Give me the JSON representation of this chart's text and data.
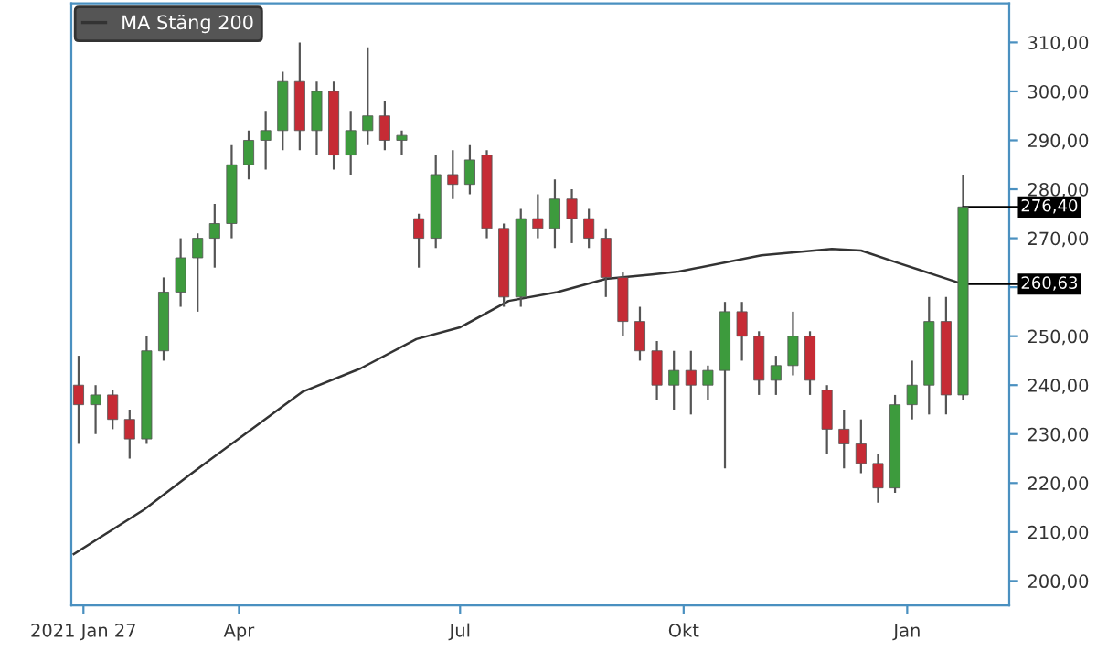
{
  "chart_data": {
    "type": "candlestick",
    "xlim": [
      "2021-01-22",
      "2022-02-12"
    ],
    "xticks": [
      {
        "value": "2021-01-27",
        "label": "2021 Jan 27"
      },
      {
        "value": "2021-04-01",
        "label": "Apr"
      },
      {
        "value": "2021-07-01",
        "label": "Jul"
      },
      {
        "value": "2021-10-01",
        "label": "Okt"
      },
      {
        "value": "2022-01-01",
        "label": "Jan"
      }
    ],
    "ylim": [
      195,
      318
    ],
    "yticks": [
      {
        "value": 200,
        "label": "200,00"
      },
      {
        "value": 210,
        "label": "210,00"
      },
      {
        "value": 220,
        "label": "220,00"
      },
      {
        "value": 230,
        "label": "230,00"
      },
      {
        "value": 240,
        "label": "240,00"
      },
      {
        "value": 250,
        "label": "250,00"
      },
      {
        "value": 260,
        "label": null
      },
      {
        "value": 270,
        "label": "270,00"
      },
      {
        "value": 280,
        "label": "280,00"
      },
      {
        "value": 290,
        "label": "290,00"
      },
      {
        "value": 300,
        "label": "300,00"
      },
      {
        "value": 310,
        "label": "310,00"
      }
    ],
    "grid": false,
    "legend": "top left",
    "series": [
      {
        "type": "candlestick",
        "colors": [
          "#c62b35",
          "#3d9b3d",
          "#c62b35",
          "#c62b35",
          "#3d9b3d",
          "#3d9b3d",
          "#3d9b3d",
          "#3d9b3d",
          "#3d9b3d",
          "#3d9b3d",
          "#3d9b3d",
          "#3d9b3d",
          "#3d9b3d",
          "#c62b35",
          "#3d9b3d",
          "#c62b35",
          "#3d9b3d",
          "#3d9b3d",
          "#c62b35",
          "#3d9b3d",
          "#c62b35",
          "#3d9b3d",
          "#c62b35",
          "#3d9b3d",
          "#c62b35",
          "#c62b35",
          "#3d9b3d",
          "#c62b35",
          "#3d9b3d",
          "#c62b35",
          "#c62b35",
          "#c62b35",
          "#c62b35",
          "#c62b35",
          "#c62b35",
          "#3d9b3d",
          "#c62b35",
          "#3d9b3d",
          "#3d9b3d",
          "#c62b35",
          "#c62b35",
          "#3d9b3d",
          "#3d9b3d",
          "#c62b35",
          "#c62b35",
          "#c62b35",
          "#c62b35",
          "#c62b35",
          "#3d9b3d",
          "#3d9b3d",
          "#3d9b3d",
          "#c62b35",
          "#3d9b3d"
        ],
        "x": [
          "2021-01-25",
          "2021-02-01",
          "2021-02-08",
          "2021-02-15",
          "2021-02-22",
          "2021-03-01",
          "2021-03-08",
          "2021-03-15",
          "2021-03-22",
          "2021-03-29",
          "2021-04-05",
          "2021-04-12",
          "2021-04-19",
          "2021-04-26",
          "2021-05-03",
          "2021-05-10",
          "2021-05-17",
          "2021-05-24",
          "2021-05-31",
          "2021-06-07",
          "2021-06-14",
          "2021-06-21",
          "2021-06-28",
          "2021-07-05",
          "2021-07-12",
          "2021-07-19",
          "2021-07-26",
          "2021-08-02",
          "2021-08-09",
          "2021-08-16",
          "2021-08-23",
          "2021-08-30",
          "2021-09-06",
          "2021-09-13",
          "2021-09-20",
          "2021-09-27",
          "2021-10-04",
          "2021-10-11",
          "2021-10-18",
          "2021-10-25",
          "2021-11-01",
          "2021-11-08",
          "2021-11-15",
          "2021-11-22",
          "2021-11-29",
          "2021-12-06",
          "2021-12-13",
          "2021-12-20",
          "2021-12-27",
          "2022-01-03",
          "2022-01-10",
          "2022-01-17",
          "2022-01-24"
        ],
        "ohlc": [
          [
            240,
            246,
            228,
            236
          ],
          [
            236,
            240,
            230,
            238
          ],
          [
            238,
            239,
            231,
            233
          ],
          [
            233,
            235,
            225,
            229
          ],
          [
            229,
            250,
            228,
            247
          ],
          [
            247,
            262,
            245,
            259
          ],
          [
            259,
            270,
            256,
            266
          ],
          [
            266,
            271,
            255,
            270
          ],
          [
            270,
            277,
            264,
            273
          ],
          [
            273,
            289,
            270,
            285
          ],
          [
            285,
            292,
            282,
            290
          ],
          [
            290,
            296,
            284,
            292
          ],
          [
            292,
            304,
            288,
            302
          ],
          [
            302,
            310,
            288,
            292
          ],
          [
            292,
            302,
            287,
            300
          ],
          [
            300,
            302,
            284,
            287
          ],
          [
            287,
            296,
            283,
            292
          ],
          [
            292,
            309,
            289,
            295
          ],
          [
            295,
            298,
            288,
            290
          ],
          [
            290,
            292,
            287,
            291
          ],
          [
            274,
            275,
            264,
            270
          ],
          [
            270,
            287,
            268,
            283
          ],
          [
            283,
            288,
            278,
            281
          ],
          [
            281,
            289,
            279,
            286
          ],
          [
            287,
            288,
            270,
            272
          ],
          [
            272,
            273,
            256,
            258
          ],
          [
            258,
            276,
            256,
            274
          ],
          [
            274,
            279,
            270,
            272
          ],
          [
            272,
            282,
            268,
            278
          ],
          [
            278,
            280,
            269,
            274
          ],
          [
            274,
            276,
            268,
            270
          ],
          [
            270,
            272,
            258,
            262
          ],
          [
            262,
            263,
            250,
            253
          ],
          [
            253,
            256,
            245,
            247
          ],
          [
            247,
            249,
            237,
            240
          ],
          [
            240,
            247,
            235,
            243
          ],
          [
            243,
            247,
            234,
            240
          ],
          [
            240,
            244,
            237,
            243
          ],
          [
            243,
            257,
            223,
            255
          ],
          [
            255,
            257,
            245,
            250
          ],
          [
            250,
            251,
            238,
            241
          ],
          [
            241,
            246,
            238,
            244
          ],
          [
            244,
            255,
            242,
            250
          ],
          [
            250,
            251,
            238,
            241
          ],
          [
            239,
            240,
            226,
            231
          ],
          [
            231,
            235,
            223,
            228
          ],
          [
            228,
            233,
            222,
            224
          ],
          [
            224,
            226,
            216,
            219
          ],
          [
            219,
            238,
            218,
            236
          ],
          [
            236,
            245,
            233,
            240
          ],
          [
            240,
            258,
            234,
            253
          ],
          [
            253,
            258,
            234,
            238
          ],
          [
            238,
            283,
            237,
            276.4
          ]
        ]
      },
      {
        "type": "line",
        "name": "MA Stäng 200",
        "color": "#333333",
        "x": [
          "2021-01-23",
          "2021-02-21",
          "2021-03-12",
          "2021-04-04",
          "2021-04-27",
          "2021-05-21",
          "2021-06-13",
          "2021-07-01",
          "2021-07-21",
          "2021-08-10",
          "2021-08-30",
          "2021-09-18",
          "2021-09-29",
          "2021-11-02",
          "2021-12-01",
          "2021-12-13",
          "2021-12-28",
          "2022-01-24"
        ],
        "values": [
          205.5,
          214.6,
          221.8,
          230.2,
          238.6,
          243.4,
          249.4,
          251.8,
          257.2,
          259,
          261.7,
          262.6,
          263.2,
          266.5,
          267.8,
          267.5,
          265,
          260.63
        ]
      }
    ],
    "annotations": [
      {
        "text": "276,40",
        "x": "2022-01-24",
        "y": 276.4
      },
      {
        "text": "260,63",
        "x": "2022-01-24",
        "y": 260.63
      }
    ]
  }
}
